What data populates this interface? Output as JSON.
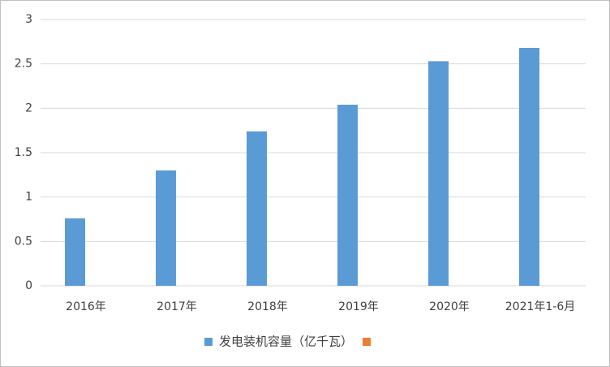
{
  "chart_data": {
    "type": "bar",
    "categories": [
      "2016年",
      "2017年",
      "2018年",
      "2019年",
      "2020年",
      "2021年1-6月"
    ],
    "series": [
      {
        "name": "发电装机容量（亿千瓦）",
        "color": "#5b9bd5",
        "values": [
          0.76,
          1.3,
          1.74,
          2.04,
          2.53,
          2.68
        ]
      },
      {
        "color": "#ed7d31",
        "values": [
          null,
          null,
          null,
          null,
          null,
          null
        ]
      }
    ],
    "ylim": [
      0,
      3
    ],
    "yticks": [
      0,
      0.5,
      1,
      1.5,
      2,
      2.5,
      3
    ],
    "grid": true,
    "legend": "bottom"
  }
}
